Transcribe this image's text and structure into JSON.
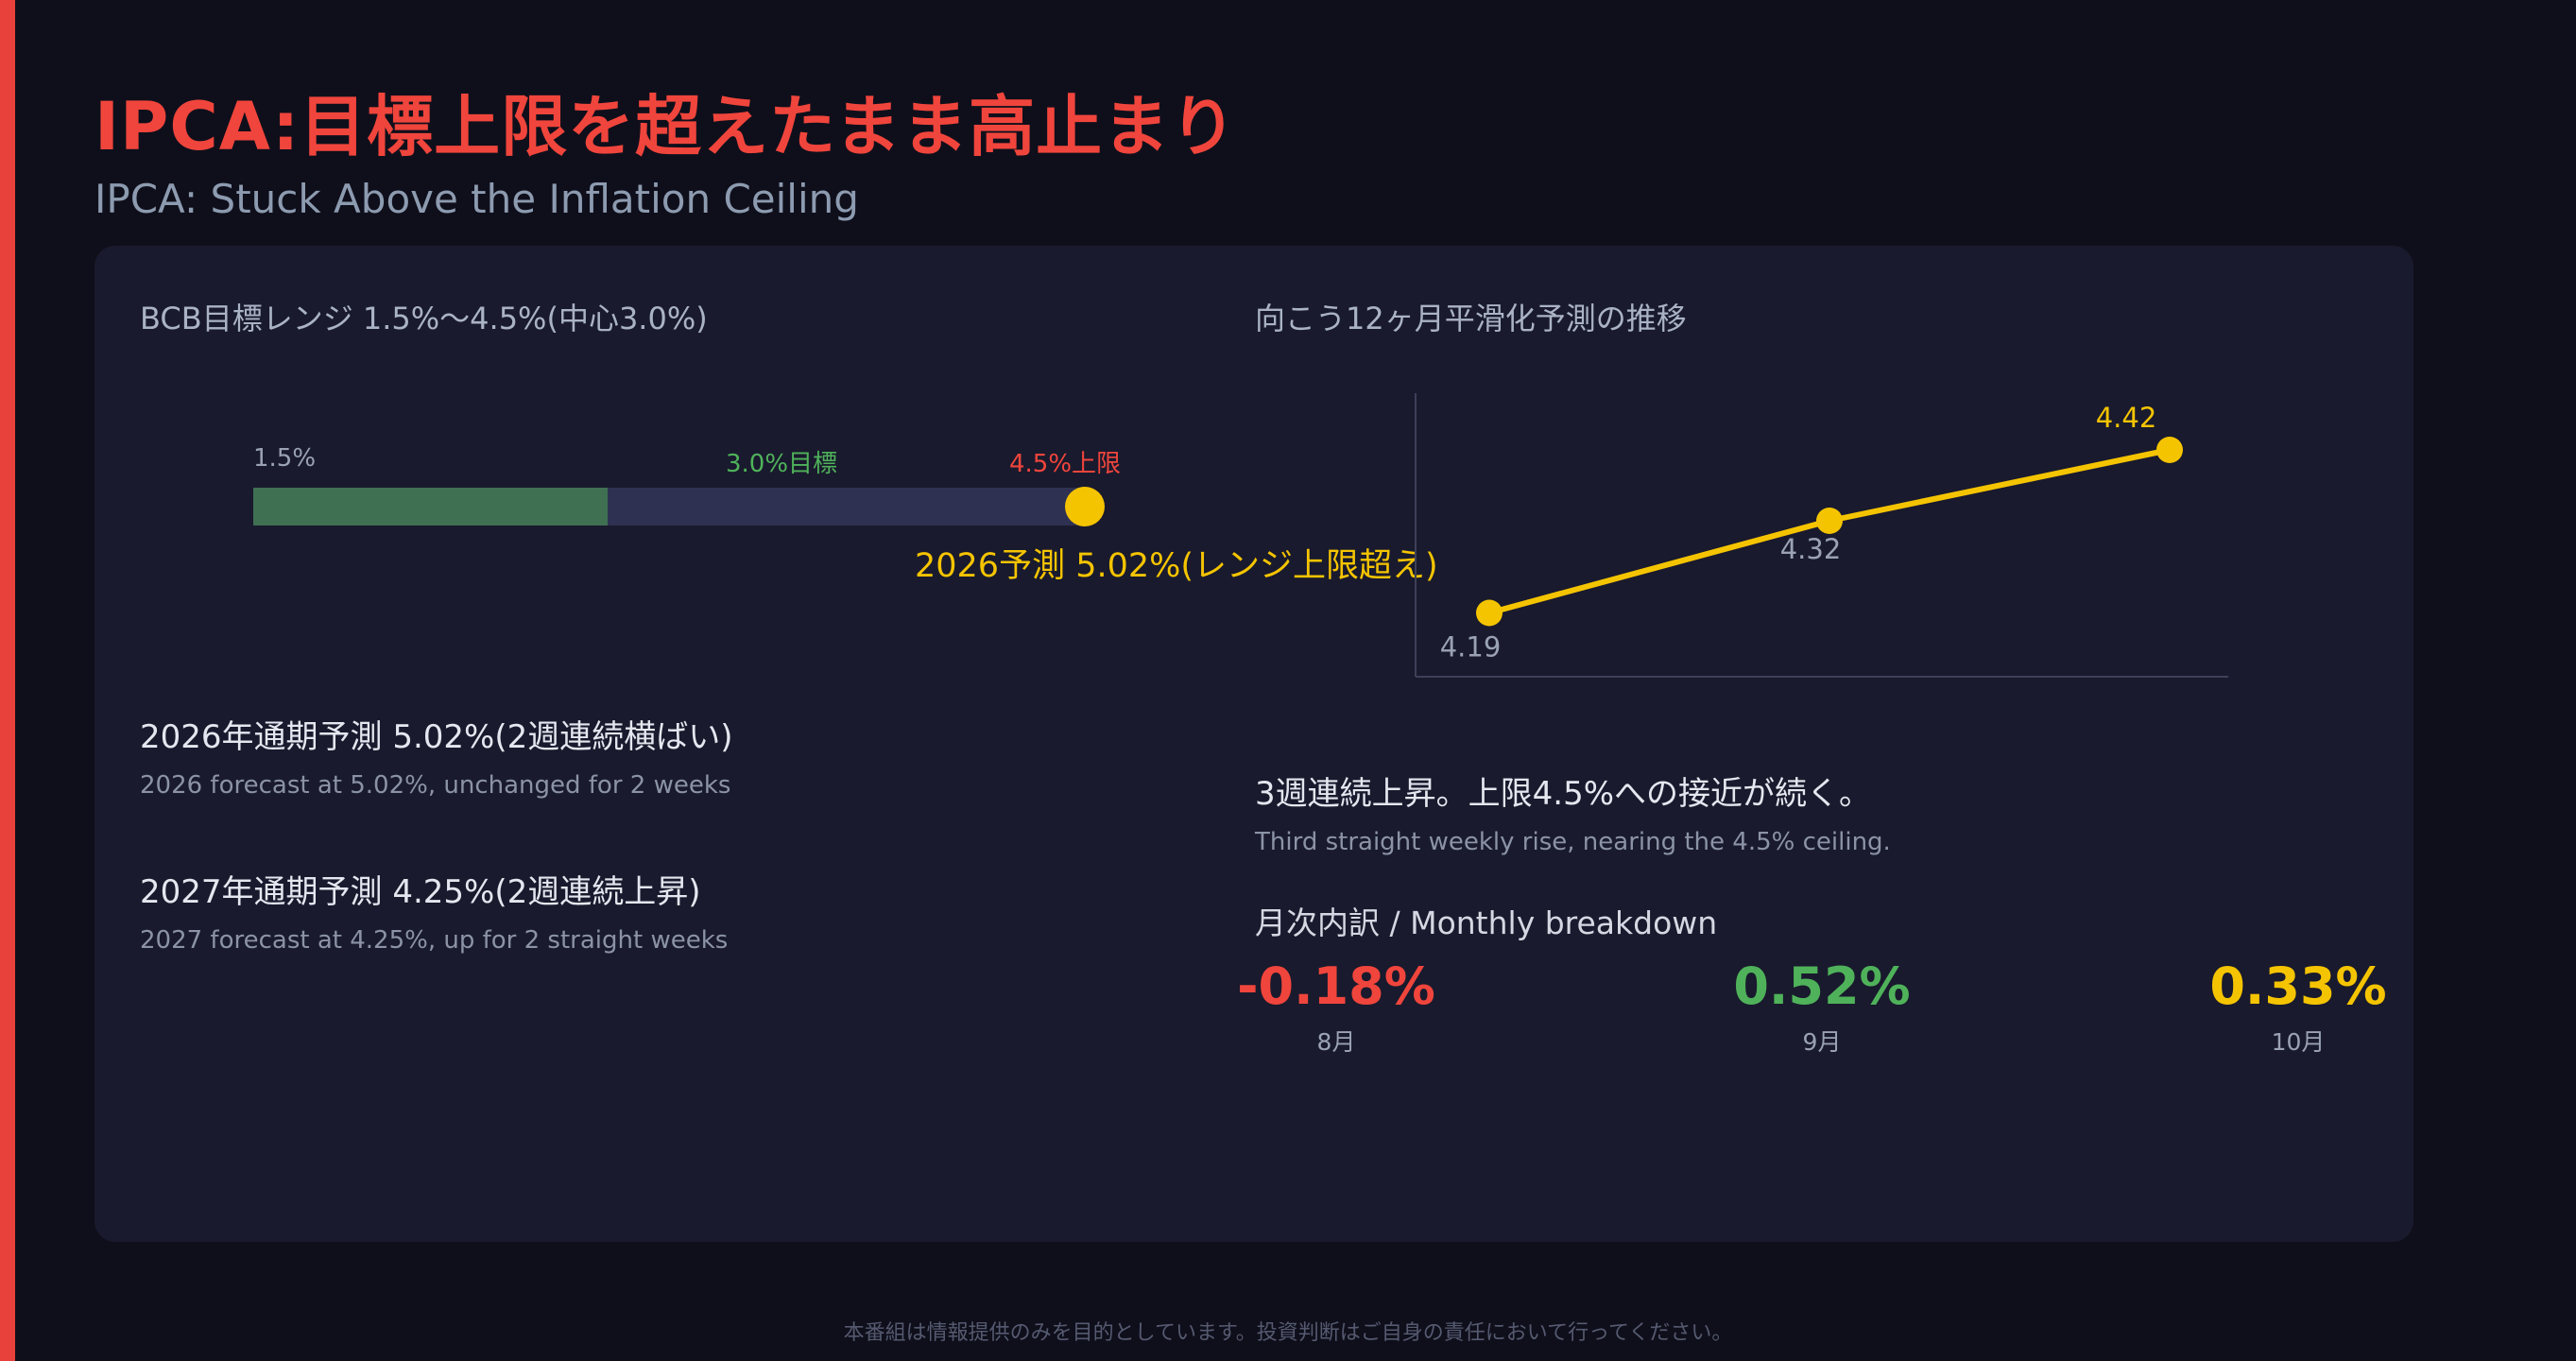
{
  "slide": {
    "title": "IPCA:目標上限を超えたまま高止まり",
    "subtitle": "IPCA: Stuck Above the Inflation Ceiling",
    "disclaimer": "本番組は情報提供のみを目的としています。投資判断はご自身の責任において行ってください。"
  },
  "colors": {
    "accent": "#e8403a",
    "target_green": "#4fb25a",
    "ceiling_red": "#f0453c",
    "forecast_yellow": "#f5c400",
    "range_fill": "#3f7052",
    "range_track": "#2f3152"
  },
  "range_panel": {
    "heading": "BCB目標レンジ 1.5%〜4.5%(中心3.0%)",
    "scale_min": 1.5,
    "scale_max": 5.02,
    "fill_to": 3.0,
    "ticks": [
      {
        "value": 1.5,
        "label": "1.5%"
      },
      {
        "value": 3.0,
        "label": "3.0%目標"
      },
      {
        "value": 4.5,
        "label": "4.5%上限"
      }
    ],
    "forecast_value": 5.02,
    "forecast_label": "2026予測 5.02%(レンジ上限超え)"
  },
  "forecasts": [
    {
      "title": "2026年通期予測 5.02%(2週連続横ばい)",
      "subtitle": "2026 forecast at 5.02%, unchanged for 2 weeks"
    },
    {
      "title": "2027年通期予測 4.25%(2週連続上昇)",
      "subtitle": "2027 forecast at 4.25%, up for 2 straight weeks"
    }
  ],
  "trend_panel": {
    "heading": "向こう12ヶ月平滑化予測の推移",
    "note_title": "3週連続上昇。上限4.5%への接近が続く。",
    "note_subtitle": "Third straight weekly rise, nearing the 4.5% ceiling."
  },
  "chart_data": {
    "type": "line",
    "title": "向こう12ヶ月平滑化予測の推移",
    "xlabel": "",
    "ylabel": "",
    "x": [
      1,
      2,
      3
    ],
    "series": [
      {
        "values": [
          4.19,
          4.32,
          4.42
        ],
        "labels": [
          "4.19",
          "4.32",
          "4.42"
        ]
      }
    ],
    "ylim": [
      4.1,
      4.5
    ],
    "grid": false,
    "legend": "none"
  },
  "monthly": {
    "heading": "月次内訳 / Monthly breakdown",
    "items": [
      {
        "value": "-0.18%",
        "label": "8月",
        "color": "#f0453c"
      },
      {
        "value": "0.52%",
        "label": "9月",
        "color": "#4fb25a"
      },
      {
        "value": "0.33%",
        "label": "10月",
        "color": "#f5c400"
      }
    ]
  }
}
